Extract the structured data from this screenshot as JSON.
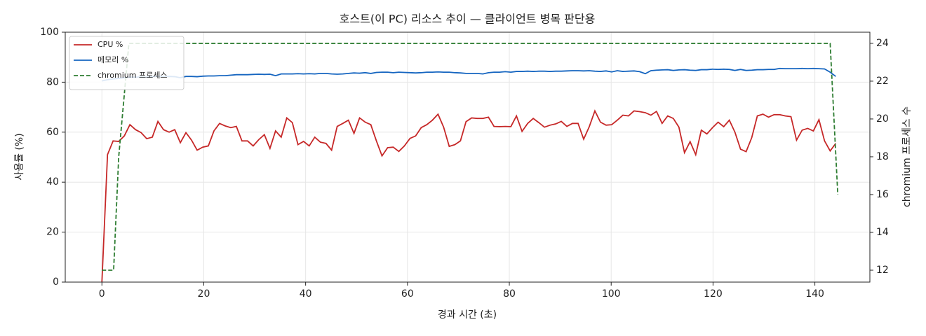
{
  "chart_data": {
    "type": "line",
    "title": "호스트(이 PC) 리소스 추이 — 클라이언트 병목 판단용",
    "xlabel": "경과 시간 (초)",
    "ylabel": "사용률 (%)",
    "y2label": "chromium 프로세스 수",
    "x": [
      0,
      1.1,
      2.2,
      3.3,
      4.4,
      5.5,
      6.6,
      7.7,
      8.8,
      9.9,
      11,
      12.1,
      13.2,
      14.3,
      15.4,
      16.5,
      17.6,
      18.7,
      19.8,
      20.9,
      22,
      23.1,
      24.2,
      25.3,
      26.4,
      27.5,
      28.6,
      29.7,
      30.8,
      31.9,
      33,
      34.1,
      35.2,
      36.3,
      37.4,
      38.5,
      39.6,
      40.7,
      41.8,
      42.9,
      44,
      45.1,
      46.2,
      47.3,
      48.4,
      49.5,
      50.6,
      51.7,
      52.8,
      53.9,
      55,
      56.1,
      57.2,
      58.3,
      59.4,
      60.5,
      61.6,
      62.7,
      63.8,
      64.9,
      66,
      67.1,
      68.2,
      69.3,
      70.4,
      71.5,
      72.6,
      73.7,
      74.8,
      75.9,
      77,
      78.1,
      79.2,
      80.3,
      81.4,
      82.5,
      83.6,
      84.7,
      85.8,
      86.9,
      88,
      89.1,
      90.2,
      91.3,
      92.4,
      93.5,
      94.6,
      95.7,
      96.8,
      97.9,
      99,
      100.1,
      101.2,
      102.3,
      103.4,
      104.5,
      105.6,
      106.7,
      107.8,
      108.9,
      110,
      111.1,
      112.2,
      113.3,
      114.4,
      115.5,
      116.6,
      117.7,
      118.8,
      119.9,
      121,
      122.1,
      123.2,
      124.3,
      125.4,
      126.5,
      127.6,
      128.7,
      129.8,
      130.9,
      132,
      133.1,
      134.2,
      135.3,
      136.4,
      137.5,
      138.6,
      139.7,
      140.8,
      141.9,
      143,
      144.1
    ],
    "series": [
      {
        "name": "CPU %",
        "color": "#c62828",
        "values": [
          0,
          51,
          56.5,
          56.3,
          58.5,
          63,
          61,
          59.8,
          57.4,
          58,
          64.3,
          61,
          60,
          61,
          55.8,
          59.8,
          56.8,
          52.8,
          54,
          54.5,
          60.5,
          63.5,
          62.5,
          61.8,
          62.3,
          56.5,
          56.5,
          54.5,
          57,
          59,
          53.5,
          60.5,
          58,
          65.7,
          63.8,
          55,
          56.3,
          54.5,
          58,
          56,
          55.5,
          52.8,
          62.3,
          63.5,
          64.8,
          59.5,
          65.7,
          64,
          63,
          56.5,
          50.5,
          53.8,
          54,
          52.3,
          54.5,
          57.5,
          58.5,
          61.8,
          63,
          64.8,
          67.2,
          62,
          54.3,
          55,
          56.5,
          64.2,
          65.7,
          65.5,
          65.5,
          66,
          62.3,
          62.2,
          62.3,
          62.2,
          66.5,
          60.3,
          63.5,
          65.5,
          63.8,
          62,
          62.8,
          63.3,
          64.3,
          62.3,
          63.5,
          63.5,
          57.2,
          62.2,
          68.5,
          64,
          62.8,
          63,
          64.8,
          66.8,
          66.5,
          68.5,
          68.2,
          67.8,
          66.8,
          68.3,
          63.5,
          66.5,
          65.5,
          62,
          51.8,
          56.2,
          51,
          60.8,
          59.3,
          61.8,
          64,
          62.2,
          64.8,
          60,
          53.2,
          52.2,
          57.8,
          66.5,
          67.2,
          66,
          67,
          67,
          66.5,
          66.2,
          56.8,
          60.8,
          61.5,
          60.5,
          65,
          56.5,
          52.5,
          55.5
        ]
      },
      {
        "name": "메모리 %",
        "color": "#1565c0",
        "values": [
          80.5,
          81,
          81.3,
          81.5,
          81.8,
          82,
          82,
          82.1,
          82,
          82.2,
          82.3,
          82.2,
          82.3,
          82.2,
          81.8,
          82.3,
          82.3,
          82.2,
          82.4,
          82.5,
          82.5,
          82.6,
          82.6,
          82.8,
          83,
          83,
          83,
          83.1,
          83.2,
          83.1,
          83.2,
          82.6,
          83.3,
          83.3,
          83.3,
          83.4,
          83.3,
          83.4,
          83.3,
          83.5,
          83.5,
          83.3,
          83.2,
          83.3,
          83.5,
          83.7,
          83.6,
          83.8,
          83.5,
          83.9,
          84,
          84,
          83.8,
          84,
          83.9,
          83.8,
          83.7,
          83.8,
          84,
          84,
          84.1,
          84,
          84,
          83.8,
          83.7,
          83.5,
          83.5,
          83.5,
          83.3,
          83.8,
          84,
          84,
          84.2,
          84,
          84.3,
          84.3,
          84.4,
          84.3,
          84.4,
          84.4,
          84.3,
          84.4,
          84.4,
          84.5,
          84.6,
          84.6,
          84.5,
          84.6,
          84.4,
          84.3,
          84.5,
          84.1,
          84.6,
          84.3,
          84.4,
          84.5,
          84.2,
          83.4,
          84.6,
          84.8,
          84.9,
          85,
          84.7,
          84.9,
          85,
          84.8,
          84.7,
          85,
          85,
          85.2,
          85.1,
          85.2,
          85.1,
          84.7,
          85.1,
          84.7,
          84.8,
          85,
          85,
          85.1,
          85.1,
          85.5,
          85.4,
          85.4,
          85.4,
          85.5,
          85.4,
          85.5,
          85.4,
          85.3,
          84,
          82.3
        ]
      },
      {
        "name": "chromium 프로세스",
        "color": "#2e7d32",
        "dashed": true,
        "axis": "y2",
        "x": [
          0,
          2.3,
          3.3,
          5.3,
          143,
          144.5
        ],
        "values": [
          12,
          12,
          18,
          24,
          24,
          16
        ]
      }
    ],
    "xlim": [
      -7.2,
      150.8
    ],
    "xticks": [
      0,
      20,
      40,
      60,
      80,
      100,
      120,
      140
    ],
    "ylim": [
      0,
      100
    ],
    "yticks": [
      0,
      20,
      40,
      60,
      80,
      100
    ],
    "y2lim": [
      11.37,
      24.59
    ],
    "y2ticks": [
      12,
      14,
      16,
      18,
      20,
      22,
      24
    ],
    "grid": true,
    "legend": "upper-left"
  }
}
